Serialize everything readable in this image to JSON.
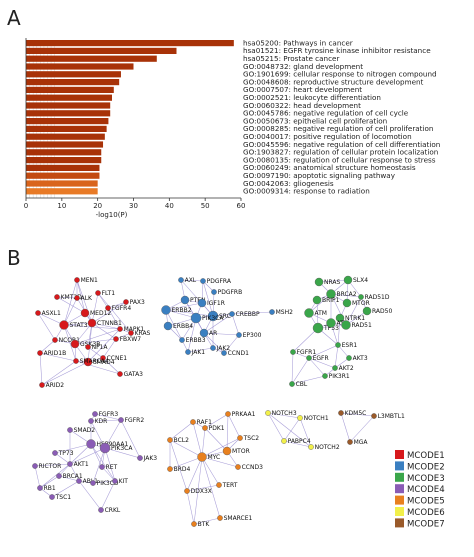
{
  "panels": {
    "a_letter": "A",
    "b_letter": "B"
  },
  "chart_data": [
    {
      "type": "bar",
      "orientation": "horizontal",
      "xlabel": "-log10(P)",
      "xlim": [
        0,
        60
      ],
      "xticks": [
        "0",
        "10",
        "20",
        "30",
        "40",
        "50",
        "60"
      ],
      "grid": "vertical lines at low x values",
      "categories": [
        "hsa05200: Pathways in cancer",
        "hsa01521: EGFR tyrosine kinase inhibitor resistance",
        "hsa05215: Prostate cancer",
        "GO:0048732: gland development",
        "GO:1901699: cellular response to nitrogen compound",
        "GO:0048608: reproductive structure development",
        "GO:0007507: heart development",
        "GO:0002521: leukocyte differentiation",
        "GO:0060322: head development",
        "GO:0045786: negative regulation of cell cycle",
        "GO:0050673: epithelial cell proliferation",
        "GO:0008285: negative regulation of cell proliferation",
        "GO:0040017: positive regulation of locomotion",
        "GO:0045596: negative regulation of cell differentiation",
        "GO:1903827: regulation of cellular protein localization",
        "GO:0080135: regulation of cellular response to stress",
        "GO:0060249: anatomical structure homeostasis",
        "GO:0097190: apoptotic signaling pathway",
        "GO:0042063: gliogenesis",
        "GO:0009314: response to radiation"
      ],
      "values": [
        58,
        42,
        36.5,
        30,
        26.5,
        26,
        24.5,
        24,
        23.5,
        23.5,
        23,
        22.5,
        22,
        21.5,
        21,
        21,
        20.5,
        20.5,
        20,
        20
      ],
      "bar_colors": [
        "#a83208",
        "#a83208",
        "#a83208",
        "#a83208",
        "#a83208",
        "#a83208",
        "#a83208",
        "#a83208",
        "#a83208",
        "#a83208",
        "#a83208",
        "#a83208",
        "#a83208",
        "#a83208",
        "#a83208",
        "#a83208",
        "#a83208",
        "#c34a10",
        "#d9641c",
        "#e87a26"
      ]
    },
    {
      "type": "network",
      "legend": [
        {
          "name": "MCODE1",
          "color": "#d7191c"
        },
        {
          "name": "MCODE2",
          "color": "#3a7fc1"
        },
        {
          "name": "MCODE3",
          "color": "#3aa64a"
        },
        {
          "name": "MCODE4",
          "color": "#8a5cb5"
        },
        {
          "name": "MCODE5",
          "color": "#e8801f"
        },
        {
          "name": "MCODE6",
          "color": "#f2f04a"
        },
        {
          "name": "MCODE7",
          "color": "#9a5a2a"
        }
      ],
      "clusters": [
        {
          "name": "MCODE1",
          "nodes": [
            "MEN1",
            "FLT1",
            "KMT2D",
            "ALK",
            "PAX3",
            "ASXL1",
            "FGFR4",
            "MED12",
            "CTNNB1",
            "STAT3",
            "NCOR1",
            "MAPK1",
            "KRAS",
            "GSK3B",
            "SMAD4",
            "FBXW7",
            "NF1A",
            "ARID1B",
            "CCNE1",
            "GATA3",
            "SMARCA4",
            "ARID2"
          ]
        },
        {
          "name": "MCODE2",
          "nodes": [
            "AXL",
            "PDGFRA",
            "PTEN",
            "IGF1R",
            "PDGFRB",
            "ERBB2",
            "SRC",
            "CREBBP",
            "MSH2",
            "ERBB4",
            "PIK3CA",
            "EP300",
            "ERBB3",
            "AR",
            "JAK1",
            "JAK2",
            "CCND1"
          ]
        },
        {
          "name": "MCODE3",
          "nodes": [
            "NRAS",
            "SLX4",
            "BRCA2",
            "RAD51D",
            "MTOR",
            "BRIP1",
            "ATM",
            "NTRK1",
            "TP53",
            "ATR",
            "RAD51",
            "RAD50",
            "FGFR1",
            "ESR1",
            "EGFR",
            "AKT3",
            "AKT2",
            "CBL",
            "PIK3R1"
          ]
        },
        {
          "name": "MCODE4",
          "nodes": [
            "FGFR3",
            "KDR",
            "FGFR2",
            "SMAD2",
            "HSP90AA1",
            "PIK3CA",
            "JAK3",
            "TP73",
            "AKT1",
            "RICTOR",
            "RET",
            "BRCA1",
            "RB1",
            "ABL1",
            "PIK3CD",
            "KIT",
            "TSC1",
            "CRKL"
          ]
        },
        {
          "name": "MCODE5",
          "nodes": [
            "RAF1",
            "PRKAA1",
            "PDK1",
            "BCL2",
            "TSC2",
            "MTOR",
            "MYC",
            "BRD4",
            "CCND3",
            "TERT",
            "DDX3X",
            "SMARCE1",
            "BTK"
          ]
        },
        {
          "name": "MCODE6",
          "nodes": [
            "NOTCH3",
            "NOTCH1",
            "PABPC4",
            "NOTCH2"
          ]
        },
        {
          "name": "MCODE7",
          "nodes": [
            "KDM5C",
            "L3MBTL1",
            "MGA"
          ]
        }
      ]
    }
  ]
}
